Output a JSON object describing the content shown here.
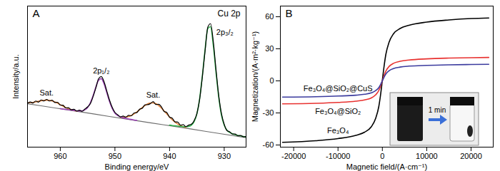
{
  "chart_data": [
    {
      "type": "line",
      "title": "A",
      "x_label": "Binding energy/eV",
      "y_label": "Intensity/a.u.",
      "annotations": [
        "Cu 2p"
      ],
      "xlim": [
        966,
        926
      ],
      "xticks": [
        960,
        950,
        940,
        930
      ],
      "ylim": [
        0,
        104
      ],
      "tick_labels": "x",
      "series": [
        {
          "color": "#6e6e6e",
          "x": [
            926,
            931,
            936,
            941,
            946,
            951,
            956,
            961,
            966
          ],
          "values": [
            7.0,
            10.1,
            13.3,
            16.4,
            19.5,
            22.6,
            25.8,
            28.9,
            32.0
          ]
        },
        {
          "name": "Sat.",
          "color": "#e0803a",
          "x": [
            957,
            957.5,
            958,
            958.5,
            959,
            959.5,
            960,
            960.5,
            961,
            961.5,
            962,
            962.5,
            963,
            963.5,
            964,
            964.5,
            965,
            965.5,
            966
          ],
          "values": [
            26.6,
            27.1,
            27.7,
            28.4,
            29.2,
            30.2,
            31.3,
            32.4,
            33.3,
            34.0,
            34.5,
            34.6,
            34.5,
            34.2,
            33.8,
            33.4,
            33.0,
            32.8,
            32.7
          ]
        },
        {
          "name": "Sat.",
          "color": "#e0803a",
          "x": [
            937,
            937.5,
            938,
            938.5,
            939,
            939.5,
            940,
            940.5,
            941,
            941.5,
            942,
            942.5,
            943,
            943.5,
            944,
            944.5,
            945,
            945.5,
            946,
            946.5,
            947,
            947.5,
            948,
            948.5,
            949
          ],
          "values": [
            14.4,
            15.1,
            15.9,
            17.0,
            18.4,
            20.1,
            22.2,
            24.4,
            26.7,
            28.8,
            30.7,
            32.0,
            32.6,
            32.6,
            31.9,
            30.7,
            29.2,
            27.5,
            25.9,
            24.5,
            23.4,
            22.6,
            22.2,
            22.0,
            21.9
          ]
        },
        {
          "name": "2p₁/₂",
          "color": "#9a3fb3",
          "x": [
            946,
            946.5,
            947,
            947.5,
            948,
            948.5,
            949,
            949.5,
            950,
            950.5,
            951,
            951.5,
            952,
            952.5,
            953,
            953.5,
            954,
            954.5,
            955,
            955.5,
            956,
            956.5,
            957,
            957.5,
            958,
            958.5,
            959,
            959.5,
            960
          ],
          "values": [
            19.7,
            20.0,
            20.4,
            20.7,
            21.2,
            21.6,
            22.3,
            23.3,
            25.1,
            28.5,
            33.7,
            40.3,
            46.8,
            50.5,
            49.2,
            44.2,
            37.9,
            32.7,
            29.2,
            27.5,
            26.8,
            26.7,
            26.8,
            27.1,
            27.3,
            27.6,
            27.8,
            28.1,
            28.4
          ]
        },
        {
          "name": "2p₃/₂",
          "color": "#2fb04a",
          "x": [
            926,
            926.5,
            927,
            927.5,
            928,
            928.5,
            929,
            929.5,
            930,
            930.5,
            931,
            931.5,
            932,
            932.5,
            933,
            933.5,
            934,
            934.5,
            935,
            935.5,
            936,
            936.5,
            937,
            937.5,
            938,
            938.5,
            939,
            939.5,
            940
          ],
          "values": [
            7.5,
            7.9,
            8.3,
            8.7,
            9.2,
            9.9,
            10.8,
            12.5,
            16.1,
            23.5,
            36.6,
            55.0,
            75.1,
            88.8,
            87.4,
            72.2,
            52.7,
            35.8,
            24.5,
            18.8,
            16.2,
            15.3,
            15.1,
            15.1,
            15.3,
            15.5,
            15.7,
            15.9,
            16.2
          ]
        },
        {
          "color": "#000000",
          "x": [
            926,
            926.5,
            927,
            927.5,
            928,
            928.5,
            929,
            929.5,
            930,
            930.5,
            931,
            931.5,
            932,
            932.5,
            933,
            933.5,
            934,
            934.5,
            935,
            935.5,
            936,
            936.5,
            937,
            937.5,
            938,
            938.5,
            939,
            939.5,
            940,
            940.5,
            941,
            941.5,
            942,
            942.5,
            943,
            943.5,
            944,
            944.5,
            945,
            945.5,
            946,
            946.5,
            947,
            947.5,
            948,
            948.5,
            949,
            949.5,
            950,
            950.5,
            951,
            951.5,
            952,
            952.5,
            953,
            953.5,
            954,
            954.5,
            955,
            955.5,
            956,
            956.5,
            957,
            957.5,
            958,
            958.5,
            959,
            959.5,
            960,
            960.5,
            961,
            961.5,
            962,
            962.5,
            963,
            963.5,
            964,
            964.5,
            965,
            965.5,
            966
          ],
          "values": [
            7.8,
            7.6,
            8.6,
            8.4,
            9.6,
            9.6,
            11.3,
            12.2,
            16.8,
            24.6,
            37.9,
            57.2,
            77.9,
            91.0,
            88.5,
            71.0,
            51.8,
            35.1,
            24.8,
            19.6,
            16.9,
            16.2,
            15.1,
            16.6,
            16.2,
            18.5,
            18.6,
            21.3,
            22.1,
            25.5,
            26.3,
            29.8,
            31.6,
            31.4,
            33.5,
            32.1,
            31.3,
            31.2,
            28.6,
            27.9,
            25.4,
            25.2,
            23.1,
            23.4,
            22.1,
            22.9,
            22.3,
            23.9,
            25.6,
            29.4,
            34.8,
            41.6,
            48.3,
            52.1,
            50.4,
            43.5,
            37.2,
            32.0,
            29.7,
            28.1,
            26.4,
            27.2,
            26.6,
            27.9,
            27.6,
            29.1,
            28.9,
            30.9,
            31.0,
            33.1,
            32.9,
            34.6,
            34.0,
            35.2,
            34.0,
            34.8,
            33.2,
            34.0,
            32.5,
            33.3,
            32.3
          ]
        }
      ]
    },
    {
      "type": "line",
      "title": "B",
      "x_label": "Magnetic field/(A·cm⁻¹)",
      "y_label": "Magnetization/(A·m²·kg⁻¹)",
      "annotations": [
        "1 min"
      ],
      "xlim": [
        -23000,
        25000
      ],
      "xticks": [
        -20000,
        -10000,
        0,
        10000,
        20000
      ],
      "ylim": [
        -62,
        70
      ],
      "yticks": [
        -60,
        -30,
        0,
        30,
        60
      ],
      "x": [
        -22500,
        -15000,
        -10000,
        -6000,
        -4000,
        -2500,
        -1500,
        -800,
        -400,
        0,
        400,
        800,
        1500,
        2500,
        4000,
        6000,
        10000,
        15000,
        20000,
        24000
      ],
      "series": [
        {
          "name": "Fe₃O₄",
          "color": "#000000",
          "values": [
            -57.5,
            -56.0,
            -54.0,
            -51.0,
            -48.0,
            -43.0,
            -35.0,
            -24.0,
            -13.0,
            0.5,
            14.0,
            25.0,
            36.0,
            44.0,
            49.0,
            52.0,
            55.0,
            57.0,
            58.3,
            58.8
          ]
        },
        {
          "name": "Fe₃O₄@SiO₂",
          "color": "#e8312f",
          "values": [
            -21.5,
            -21.0,
            -20.2,
            -19.0,
            -17.8,
            -16.0,
            -13.0,
            -9.0,
            -4.8,
            0.2,
            5.2,
            9.3,
            13.4,
            16.4,
            18.3,
            19.5,
            20.6,
            21.3,
            21.7,
            21.9
          ]
        },
        {
          "name": "Fe₃O₄@SiO₂@CuS",
          "color": "#3b3b9e",
          "values": [
            -15.2,
            -14.8,
            -14.2,
            -13.4,
            -12.5,
            -11.2,
            -9.1,
            -6.3,
            -3.4,
            0.1,
            3.6,
            6.5,
            9.4,
            11.5,
            12.9,
            13.8,
            14.5,
            15.0,
            15.3,
            15.5
          ]
        }
      ]
    }
  ]
}
